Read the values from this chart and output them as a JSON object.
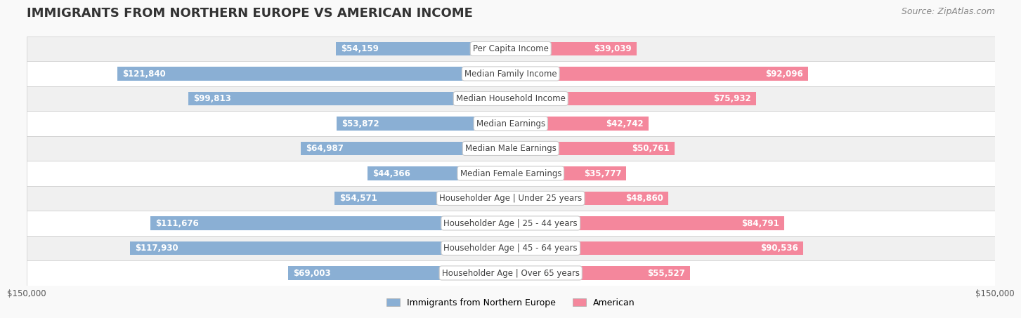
{
  "title": "IMMIGRANTS FROM NORTHERN EUROPE VS AMERICAN INCOME",
  "source": "Source: ZipAtlas.com",
  "categories": [
    "Per Capita Income",
    "Median Family Income",
    "Median Household Income",
    "Median Earnings",
    "Median Male Earnings",
    "Median Female Earnings",
    "Householder Age | Under 25 years",
    "Householder Age | 25 - 44 years",
    "Householder Age | 45 - 64 years",
    "Householder Age | Over 65 years"
  ],
  "immigrant_values": [
    54159,
    121840,
    99813,
    53872,
    64987,
    44366,
    54571,
    111676,
    117930,
    69003
  ],
  "american_values": [
    39039,
    92096,
    75932,
    42742,
    50761,
    35777,
    48860,
    84791,
    90536,
    55527
  ],
  "immigrant_color": "#8aafd4",
  "american_color": "#f4879c",
  "immigrant_label": "Immigrants from Northern Europe",
  "american_label": "American",
  "x_max": 150000,
  "background_color": "#f5f5f5",
  "row_bg_color": "#ffffff",
  "row_alt_bg_color": "#f0f0f0",
  "label_box_color": "#ffffff",
  "label_text_color": "#555555",
  "value_text_color_inside": "#ffffff",
  "value_text_color_outside": "#555555",
  "title_fontsize": 13,
  "source_fontsize": 9,
  "category_fontsize": 8.5,
  "value_fontsize": 8.5,
  "legend_fontsize": 9,
  "axis_label_fontsize": 8.5
}
